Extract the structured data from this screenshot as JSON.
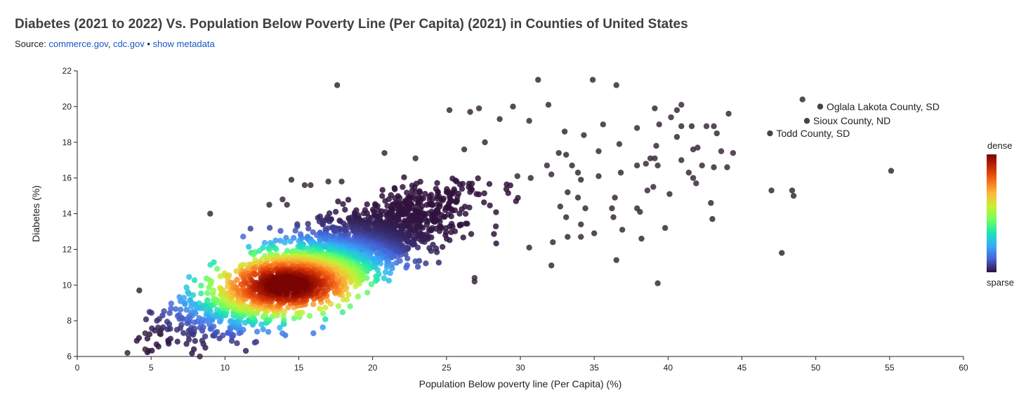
{
  "header": {
    "title": "Diabetes (2021 to 2022) Vs. Population Below Poverty Line (Per Capita) (2021) in Counties of United States",
    "source_prefix": "Source: ",
    "source_link_1": "commerce.gov",
    "source_sep": ", ",
    "source_link_2": "cdc.gov",
    "bullet": " • ",
    "metadata_link": "show metadata"
  },
  "legend": {
    "top_label": "dense",
    "bottom_label": "sparse",
    "colormap": [
      "#30123b",
      "#4662d7",
      "#36aaf9",
      "#1ae4b6",
      "#72fe5e",
      "#c8ef34",
      "#faba39",
      "#f66b19",
      "#ca2a04",
      "#7a0403"
    ]
  },
  "chart_data": {
    "type": "scatter",
    "title": "Diabetes (2021 to 2022) Vs. Population Below Poverty Line (Per Capita) (2021) in Counties of United States",
    "xlabel": "Population Below poverty line (Per Capita) (%)",
    "ylabel": "Diabetes (%)",
    "xlim": [
      0,
      60
    ],
    "ylim": [
      6,
      22
    ],
    "xticks": [
      "0",
      "5",
      "10",
      "15",
      "20",
      "25",
      "30",
      "35",
      "40",
      "45",
      "50",
      "55",
      "60"
    ],
    "yticks": [
      "6",
      "8",
      "10",
      "12",
      "14",
      "16",
      "18",
      "20",
      "22"
    ],
    "density_center": {
      "x": 14.2,
      "y": 10.0
    },
    "sparse_points": [
      {
        "x": 17.6,
        "y": 21.2
      },
      {
        "x": 31.2,
        "y": 21.5
      },
      {
        "x": 34.9,
        "y": 21.5
      },
      {
        "x": 36.5,
        "y": 21.2
      },
      {
        "x": 31.9,
        "y": 20.1
      },
      {
        "x": 29.5,
        "y": 20.0
      },
      {
        "x": 25.2,
        "y": 19.8
      },
      {
        "x": 26.6,
        "y": 19.7
      },
      {
        "x": 27.2,
        "y": 19.9
      },
      {
        "x": 28.6,
        "y": 19.3
      },
      {
        "x": 30.6,
        "y": 19.2
      },
      {
        "x": 35.6,
        "y": 19.0
      },
      {
        "x": 37.9,
        "y": 18.8
      },
      {
        "x": 40.9,
        "y": 20.1
      },
      {
        "x": 40.6,
        "y": 19.8
      },
      {
        "x": 39.1,
        "y": 19.9
      },
      {
        "x": 40.2,
        "y": 19.4
      },
      {
        "x": 42.6,
        "y": 18.9
      },
      {
        "x": 43.1,
        "y": 18.9
      },
      {
        "x": 44.1,
        "y": 19.6
      },
      {
        "x": 39.4,
        "y": 19.0
      },
      {
        "x": 40.9,
        "y": 18.9
      },
      {
        "x": 41.6,
        "y": 18.9
      },
      {
        "x": 43.3,
        "y": 18.5
      },
      {
        "x": 40.6,
        "y": 18.3
      },
      {
        "x": 39.2,
        "y": 17.8
      },
      {
        "x": 41.7,
        "y": 17.6
      },
      {
        "x": 42.0,
        "y": 17.7
      },
      {
        "x": 43.6,
        "y": 17.5
      },
      {
        "x": 44.4,
        "y": 17.4
      },
      {
        "x": 34.3,
        "y": 18.4
      },
      {
        "x": 33.0,
        "y": 18.6
      },
      {
        "x": 35.3,
        "y": 17.5
      },
      {
        "x": 36.7,
        "y": 17.9
      },
      {
        "x": 38.8,
        "y": 17.1
      },
      {
        "x": 39.1,
        "y": 17.1
      },
      {
        "x": 40.9,
        "y": 17.0
      },
      {
        "x": 39.3,
        "y": 16.7
      },
      {
        "x": 38.5,
        "y": 16.8
      },
      {
        "x": 37.9,
        "y": 16.7
      },
      {
        "x": 36.8,
        "y": 16.3
      },
      {
        "x": 35.3,
        "y": 16.1
      },
      {
        "x": 33.1,
        "y": 17.3
      },
      {
        "x": 32.6,
        "y": 17.4
      },
      {
        "x": 33.5,
        "y": 16.7
      },
      {
        "x": 33.9,
        "y": 16.3
      },
      {
        "x": 34.1,
        "y": 15.9
      },
      {
        "x": 31.8,
        "y": 16.7
      },
      {
        "x": 32.1,
        "y": 16.2
      },
      {
        "x": 30.7,
        "y": 16.0
      },
      {
        "x": 29.8,
        "y": 16.1
      },
      {
        "x": 27.6,
        "y": 18.0
      },
      {
        "x": 26.2,
        "y": 17.6
      },
      {
        "x": 20.8,
        "y": 17.4
      },
      {
        "x": 22.9,
        "y": 17.1
      },
      {
        "x": 41.4,
        "y": 16.3
      },
      {
        "x": 42.3,
        "y": 16.7
      },
      {
        "x": 43.1,
        "y": 16.6
      },
      {
        "x": 44.0,
        "y": 16.6
      },
      {
        "x": 41.7,
        "y": 16.0
      },
      {
        "x": 41.9,
        "y": 15.7
      },
      {
        "x": 39.0,
        "y": 15.5
      },
      {
        "x": 38.6,
        "y": 15.3
      },
      {
        "x": 40.1,
        "y": 15.1
      },
      {
        "x": 36.4,
        "y": 14.9
      },
      {
        "x": 36.2,
        "y": 14.3
      },
      {
        "x": 37.9,
        "y": 14.3
      },
      {
        "x": 38.1,
        "y": 14.1
      },
      {
        "x": 36.3,
        "y": 13.8
      },
      {
        "x": 34.4,
        "y": 14.3
      },
      {
        "x": 34.1,
        "y": 13.4
      },
      {
        "x": 33.1,
        "y": 13.8
      },
      {
        "x": 32.7,
        "y": 14.4
      },
      {
        "x": 33.9,
        "y": 14.9
      },
      {
        "x": 33.2,
        "y": 15.2
      },
      {
        "x": 35.0,
        "y": 12.9
      },
      {
        "x": 34.1,
        "y": 12.7
      },
      {
        "x": 36.9,
        "y": 13.1
      },
      {
        "x": 38.2,
        "y": 12.6
      },
      {
        "x": 39.8,
        "y": 13.2
      },
      {
        "x": 42.9,
        "y": 14.6
      },
      {
        "x": 43.0,
        "y": 13.7
      },
      {
        "x": 33.2,
        "y": 12.7
      },
      {
        "x": 32.2,
        "y": 12.4
      },
      {
        "x": 30.6,
        "y": 12.1
      },
      {
        "x": 32.1,
        "y": 11.1
      },
      {
        "x": 36.5,
        "y": 11.4
      },
      {
        "x": 39.3,
        "y": 10.1
      },
      {
        "x": 47.0,
        "y": 15.3
      },
      {
        "x": 48.4,
        "y": 15.3
      },
      {
        "x": 48.5,
        "y": 15.0
      },
      {
        "x": 47.7,
        "y": 11.8
      },
      {
        "x": 55.1,
        "y": 16.4
      },
      {
        "x": 49.1,
        "y": 20.4
      },
      {
        "x": 26.9,
        "y": 10.4
      },
      {
        "x": 26.9,
        "y": 10.2
      },
      {
        "x": 9.0,
        "y": 14.0
      },
      {
        "x": 13.0,
        "y": 14.5
      },
      {
        "x": 14.5,
        "y": 15.9
      },
      {
        "x": 15.4,
        "y": 15.6
      },
      {
        "x": 15.8,
        "y": 15.6
      },
      {
        "x": 17.0,
        "y": 15.8
      },
      {
        "x": 17.9,
        "y": 15.8
      },
      {
        "x": 4.2,
        "y": 9.7
      },
      {
        "x": 3.4,
        "y": 6.2
      },
      {
        "x": 4.6,
        "y": 6.4
      },
      {
        "x": 4.6,
        "y": 7.3
      },
      {
        "x": 5.6,
        "y": 7.4
      },
      {
        "x": 8.3,
        "y": 6.0
      },
      {
        "x": 13.9,
        "y": 14.8
      },
      {
        "x": 14.2,
        "y": 14.5
      }
    ],
    "labeled_points": [
      {
        "x": 50.3,
        "y": 20.0,
        "label": "Oglala Lakota County, SD"
      },
      {
        "x": 49.4,
        "y": 19.2,
        "label": "Sioux County, ND"
      },
      {
        "x": 46.9,
        "y": 18.5,
        "label": "Todd County, SD"
      }
    ]
  }
}
